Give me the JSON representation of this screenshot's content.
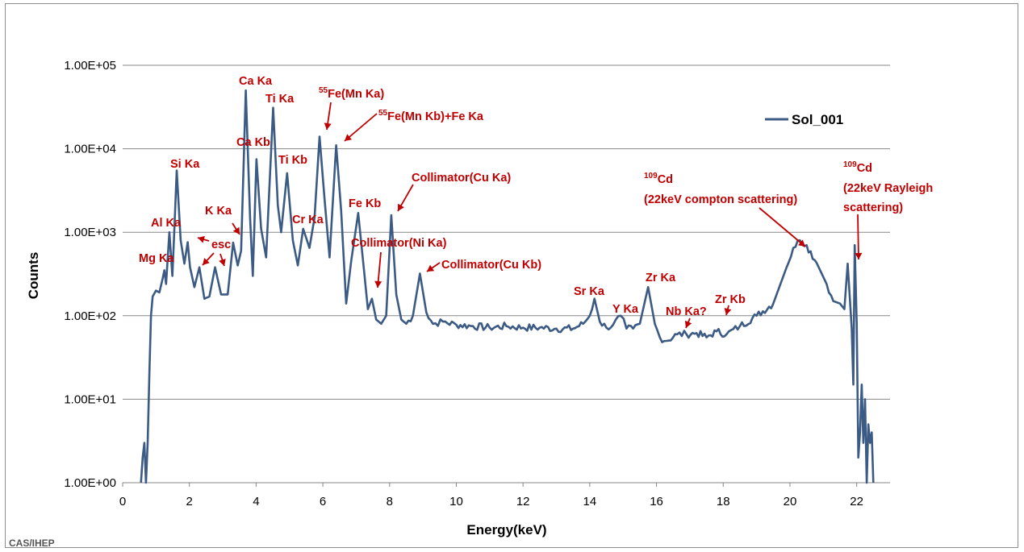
{
  "chart_data": {
    "type": "line",
    "title": "",
    "xlabel": "Energy(keV)",
    "ylabel": "Counts",
    "xlim": [
      0,
      23
    ],
    "ylim": [
      1,
      100000
    ],
    "yscale": "log",
    "x_ticks": [
      "0",
      "2",
      "4",
      "6",
      "8",
      "10",
      "12",
      "14",
      "16",
      "18",
      "20",
      "22"
    ],
    "y_ticks": [
      "1.00E+00",
      "1.00E+01",
      "1.00E+02",
      "1.00E+03",
      "1.00E+04",
      "1.00E+05"
    ],
    "grid": "horizontal",
    "legend_position": "top-right",
    "series": [
      {
        "name": "Sol_001",
        "color": "#3b5a84",
        "x": [
          0.55,
          0.6,
          0.65,
          0.7,
          0.75,
          0.8,
          0.85,
          0.9,
          1.0,
          1.1,
          1.2,
          1.25,
          1.3,
          1.4,
          1.49,
          1.55,
          1.62,
          1.74,
          1.85,
          1.95,
          2.02,
          2.15,
          2.3,
          2.45,
          2.6,
          2.77,
          2.95,
          3.15,
          3.31,
          3.45,
          3.55,
          3.69,
          3.82,
          3.9,
          4.01,
          4.15,
          4.3,
          4.51,
          4.65,
          4.75,
          4.93,
          5.1,
          5.25,
          5.41,
          5.6,
          5.75,
          5.9,
          6.05,
          6.2,
          6.4,
          6.55,
          6.7,
          6.85,
          7.06,
          7.25,
          7.35,
          7.47,
          7.6,
          7.75,
          7.9,
          8.05,
          8.2,
          8.35,
          8.5,
          8.7,
          8.91,
          9.1,
          9.3,
          9.6,
          10.0,
          10.5,
          11.0,
          11.5,
          12.0,
          12.5,
          13.0,
          13.5,
          13.8,
          14.0,
          14.14,
          14.3,
          14.5,
          14.7,
          14.93,
          15.1,
          15.3,
          15.5,
          15.75,
          15.95,
          16.1,
          16.3,
          16.62,
          16.9,
          17.2,
          17.5,
          17.8,
          18.1,
          18.5,
          19.0,
          19.5,
          19.9,
          20.1,
          20.3,
          20.5,
          20.8,
          21.1,
          21.3,
          21.5,
          21.63,
          21.73,
          21.8,
          21.85,
          21.9,
          21.94,
          22.0,
          22.05,
          22.1,
          22.15,
          22.2,
          22.25,
          22.3,
          22.35,
          22.4,
          22.45,
          22.5
        ],
        "values": [
          1,
          2,
          3,
          1,
          3,
          20,
          100,
          170,
          200,
          190,
          280,
          350,
          240,
          1000,
          300,
          1100,
          5500,
          800,
          420,
          760,
          380,
          220,
          380,
          160,
          170,
          380,
          180,
          180,
          750,
          400,
          600,
          50000,
          1500,
          300,
          7500,
          1100,
          500,
          31000,
          2100,
          1000,
          5100,
          800,
          400,
          1100,
          650,
          1500,
          14000,
          2500,
          500,
          11000,
          1800,
          140,
          450,
          1700,
          300,
          120,
          160,
          90,
          80,
          100,
          1600,
          180,
          90,
          80,
          100,
          320,
          110,
          80,
          85,
          78,
          75,
          72,
          75,
          72,
          72,
          70,
          70,
          80,
          100,
          160,
          85,
          72,
          78,
          100,
          70,
          70,
          80,
          220,
          80,
          55,
          50,
          60,
          60,
          62,
          55,
          65,
          60,
          75,
          100,
          140,
          380,
          650,
          800,
          700,
          430,
          240,
          150,
          140,
          120,
          420,
          150,
          70,
          15,
          700,
          80,
          2,
          4,
          15,
          3,
          10,
          1,
          5,
          3,
          4,
          1
        ]
      }
    ],
    "annotations": [
      {
        "id": "mg",
        "pre": "",
        "sup": "",
        "text": "Mg Ka"
      },
      {
        "id": "al",
        "pre": "",
        "sup": "",
        "text": "Al Ka"
      },
      {
        "id": "si",
        "pre": "",
        "sup": "",
        "text": "Si Ka"
      },
      {
        "id": "esc",
        "pre": "",
        "sup": "",
        "text": "esc"
      },
      {
        "id": "k",
        "pre": "",
        "sup": "",
        "text": "K Ka"
      },
      {
        "id": "caka",
        "pre": "",
        "sup": "",
        "text": "Ca Ka"
      },
      {
        "id": "cakb",
        "pre": "",
        "sup": "",
        "text": "Ca Kb"
      },
      {
        "id": "tika",
        "pre": "",
        "sup": "",
        "text": "Ti Ka"
      },
      {
        "id": "tikb",
        "pre": "",
        "sup": "",
        "text": "Ti Kb"
      },
      {
        "id": "cr",
        "pre": "",
        "sup": "",
        "text": "Cr Ka"
      },
      {
        "id": "fe55a",
        "pre": "",
        "sup": "55",
        "text": "Fe(Mn Ka)"
      },
      {
        "id": "fe55b",
        "pre": "",
        "sup": "55",
        "text": "Fe(Mn Kb)+Fe Ka"
      },
      {
        "id": "fekb",
        "pre": "",
        "sup": "",
        "text": "Fe Kb"
      },
      {
        "id": "cuka",
        "pre": "",
        "sup": "",
        "text": "Collimator(Cu Ka)"
      },
      {
        "id": "nika",
        "pre": "",
        "sup": "",
        "text": "Collimator(Ni Ka)"
      },
      {
        "id": "cukb",
        "pre": "",
        "sup": "",
        "text": "Collimator(Cu Kb)"
      },
      {
        "id": "sr",
        "pre": "",
        "sup": "",
        "text": "Sr Ka"
      },
      {
        "id": "y",
        "pre": "",
        "sup": "",
        "text": "Y Ka"
      },
      {
        "id": "zrka",
        "pre": "",
        "sup": "",
        "text": "Zr Ka"
      },
      {
        "id": "nb",
        "pre": "",
        "sup": "",
        "text": "Nb Ka?"
      },
      {
        "id": "zrkb",
        "pre": "",
        "sup": "",
        "text": "Zr Kb"
      },
      {
        "id": "cd1",
        "pre": "",
        "sup": "109",
        "text": "Cd"
      },
      {
        "id": "cd1b",
        "pre": "",
        "sup": "",
        "text": "(22keV compton scattering)"
      },
      {
        "id": "cd2",
        "pre": "",
        "sup": "109",
        "text": "Cd"
      },
      {
        "id": "cd2b",
        "pre": "",
        "sup": "",
        "text": "(22keV Rayleigh"
      },
      {
        "id": "cd2c",
        "pre": "",
        "sup": "",
        "text": "scattering)"
      }
    ]
  },
  "footer": {
    "credit": "CAS/IHEP"
  }
}
